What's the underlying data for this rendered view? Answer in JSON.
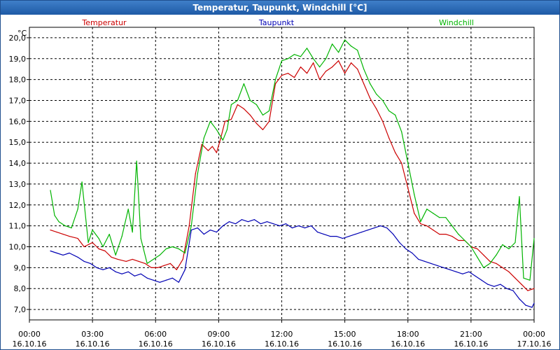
{
  "window": {
    "title": "Temperatur, Taupunkt, Windchill [°C]"
  },
  "chart_data": {
    "type": "line",
    "title": "Temperatur, Taupunkt, Windchill [°C]",
    "ylabel": "°C",
    "xlabel": "",
    "ylim": [
      6.5,
      20.5
    ],
    "xlim": [
      0,
      24
    ],
    "grid": true,
    "yticks": [
      "20,0",
      "19,0",
      "18,0",
      "17,0",
      "16,0",
      "15,0",
      "14,0",
      "13,0",
      "12,0",
      "11,0",
      "10,0",
      "9,0",
      "8,0",
      "7,0"
    ],
    "xticks": [
      {
        "time": "00:00",
        "date": "16.10.16"
      },
      {
        "time": "03:00",
        "date": "16.10.16"
      },
      {
        "time": "06:00",
        "date": "16.10.16"
      },
      {
        "time": "09:00",
        "date": "16.10.16"
      },
      {
        "time": "12:00",
        "date": "16.10.16"
      },
      {
        "time": "15:00",
        "date": "16.10.16"
      },
      {
        "time": "18:00",
        "date": "16.10.16"
      },
      {
        "time": "21:00",
        "date": "16.10.16"
      },
      {
        "time": "00:00",
        "date": "17.10.16"
      }
    ],
    "series": [
      {
        "name": "Temperatur",
        "color": "#cc0000",
        "legend_position": "top-left",
        "x": [
          1.0,
          1.3,
          1.6,
          1.9,
          2.3,
          2.6,
          2.8,
          3.0,
          3.3,
          3.6,
          3.9,
          4.2,
          4.6,
          4.9,
          5.2,
          5.5,
          5.8,
          6.1,
          6.4,
          6.7,
          7.0,
          7.3,
          7.6,
          7.9,
          8.2,
          8.5,
          8.7,
          8.9,
          9.1,
          9.3,
          9.6,
          9.9,
          10.2,
          10.5,
          10.8,
          11.1,
          11.4,
          11.7,
          12.0,
          12.3,
          12.6,
          12.9,
          13.2,
          13.5,
          13.8,
          14.1,
          14.4,
          14.7,
          15.0,
          15.3,
          15.6,
          15.9,
          16.2,
          16.5,
          16.8,
          17.1,
          17.4,
          17.7,
          18.0,
          18.3,
          18.6,
          18.9,
          19.2,
          19.5,
          19.8,
          20.1,
          20.4,
          20.7,
          21.0,
          21.3,
          21.6,
          21.9,
          22.2,
          22.5,
          22.8,
          23.1,
          23.4,
          23.7,
          24.0
        ],
        "values": [
          10.8,
          10.7,
          10.6,
          10.5,
          10.4,
          10.0,
          10.1,
          10.2,
          9.9,
          9.8,
          9.5,
          9.4,
          9.3,
          9.4,
          9.3,
          9.2,
          9.0,
          9.0,
          9.1,
          9.2,
          8.9,
          9.4,
          11.0,
          13.5,
          14.9,
          14.6,
          14.8,
          14.5,
          15.2,
          16.0,
          16.1,
          16.8,
          16.6,
          16.3,
          15.9,
          15.6,
          16.0,
          17.8,
          18.2,
          18.3,
          18.1,
          18.6,
          18.3,
          18.8,
          18.0,
          18.4,
          18.6,
          18.9,
          18.3,
          18.8,
          18.5,
          17.8,
          17.1,
          16.6,
          16.0,
          15.2,
          14.5,
          14.0,
          12.8,
          11.6,
          11.1,
          11.0,
          10.8,
          10.6,
          10.6,
          10.5,
          10.3,
          10.3,
          10.0,
          9.9,
          9.6,
          9.3,
          9.2,
          9.0,
          8.8,
          8.5,
          8.2,
          7.9,
          8.0
        ]
      },
      {
        "name": "Taupunkt",
        "color": "#0000b4",
        "legend_position": "top-center",
        "x": [
          1.0,
          1.3,
          1.6,
          1.9,
          2.3,
          2.6,
          2.9,
          3.2,
          3.5,
          3.8,
          4.1,
          4.4,
          4.7,
          5.0,
          5.3,
          5.6,
          5.9,
          6.2,
          6.5,
          6.8,
          7.1,
          7.4,
          7.7,
          8.0,
          8.3,
          8.6,
          8.9,
          9.2,
          9.5,
          9.8,
          10.1,
          10.4,
          10.7,
          11.0,
          11.3,
          11.6,
          11.9,
          12.2,
          12.5,
          12.8,
          13.1,
          13.4,
          13.7,
          14.0,
          14.3,
          14.6,
          14.9,
          15.2,
          15.5,
          15.8,
          16.1,
          16.4,
          16.7,
          17.0,
          17.3,
          17.6,
          17.9,
          18.2,
          18.5,
          18.8,
          19.1,
          19.4,
          19.7,
          20.0,
          20.3,
          20.6,
          20.9,
          21.2,
          21.5,
          21.8,
          22.1,
          22.4,
          22.7,
          23.0,
          23.3,
          23.6,
          23.9,
          24.0
        ],
        "values": [
          9.8,
          9.7,
          9.6,
          9.7,
          9.5,
          9.3,
          9.2,
          9.0,
          8.9,
          9.0,
          8.8,
          8.7,
          8.8,
          8.6,
          8.7,
          8.5,
          8.4,
          8.3,
          8.4,
          8.5,
          8.3,
          8.9,
          10.8,
          10.9,
          10.6,
          10.8,
          10.7,
          11.0,
          11.2,
          11.1,
          11.3,
          11.2,
          11.3,
          11.1,
          11.2,
          11.1,
          11.0,
          11.1,
          10.9,
          11.0,
          10.9,
          11.0,
          10.7,
          10.6,
          10.5,
          10.5,
          10.4,
          10.5,
          10.6,
          10.7,
          10.8,
          10.9,
          11.0,
          10.9,
          10.6,
          10.2,
          9.9,
          9.7,
          9.4,
          9.3,
          9.2,
          9.1,
          9.0,
          8.9,
          8.8,
          8.7,
          8.8,
          8.6,
          8.4,
          8.2,
          8.1,
          8.2,
          8.0,
          7.9,
          7.5,
          7.2,
          7.1,
          7.3
        ]
      },
      {
        "name": "Windchill",
        "color": "#00b400",
        "legend_position": "top-right",
        "x": [
          1.0,
          1.2,
          1.4,
          1.7,
          2.0,
          2.3,
          2.5,
          2.8,
          3.0,
          3.3,
          3.5,
          3.8,
          4.1,
          4.4,
          4.7,
          4.9,
          5.1,
          5.3,
          5.6,
          5.9,
          6.2,
          6.5,
          6.8,
          7.1,
          7.4,
          7.7,
          8.0,
          8.3,
          8.6,
          8.9,
          9.2,
          9.4,
          9.6,
          9.9,
          10.2,
          10.5,
          10.8,
          11.1,
          11.4,
          11.7,
          12.0,
          12.3,
          12.6,
          12.9,
          13.2,
          13.5,
          13.8,
          14.1,
          14.4,
          14.7,
          15.0,
          15.3,
          15.6,
          15.9,
          16.2,
          16.5,
          16.8,
          17.1,
          17.4,
          17.7,
          18.0,
          18.3,
          18.6,
          18.9,
          19.2,
          19.5,
          19.8,
          20.1,
          20.4,
          20.7,
          21.0,
          21.3,
          21.6,
          21.9,
          22.2,
          22.5,
          22.8,
          23.1,
          23.3,
          23.5,
          23.8,
          24.0
        ],
        "values": [
          12.7,
          11.5,
          11.2,
          11.0,
          10.9,
          11.8,
          13.1,
          10.2,
          10.8,
          10.4,
          10.0,
          10.6,
          9.6,
          10.5,
          11.8,
          10.7,
          14.1,
          10.4,
          9.2,
          9.4,
          9.6,
          9.9,
          10.0,
          9.9,
          9.7,
          11.0,
          13.5,
          15.2,
          16.0,
          15.6,
          15.1,
          15.6,
          16.8,
          17.0,
          17.8,
          17.0,
          16.8,
          16.3,
          16.5,
          18.0,
          18.9,
          19.0,
          19.2,
          19.1,
          19.5,
          19.0,
          18.6,
          19.0,
          19.7,
          19.3,
          19.9,
          19.6,
          19.4,
          18.5,
          17.8,
          17.3,
          17.0,
          16.5,
          16.3,
          15.5,
          14.0,
          12.5,
          11.2,
          11.8,
          11.6,
          11.4,
          11.4,
          11.0,
          10.6,
          10.3,
          10.0,
          9.5,
          9.0,
          9.2,
          9.6,
          10.1,
          9.9,
          10.2,
          12.4,
          8.5,
          8.4,
          10.4
        ]
      }
    ]
  }
}
